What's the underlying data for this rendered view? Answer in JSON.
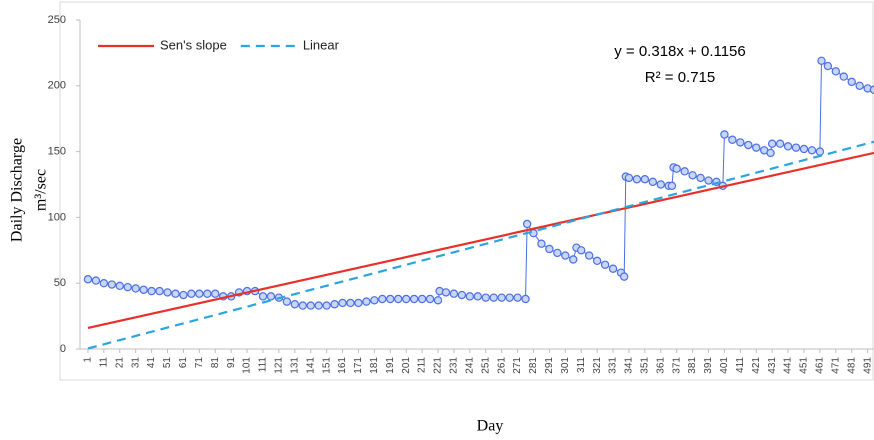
{
  "chart_data": {
    "type": "line",
    "xlabel": "Day",
    "ylabel": [
      "Daily Discharge",
      "m³/sec"
    ],
    "annotations": [
      "y = 0.318x + 0.1156",
      "R² = 0.715"
    ],
    "xlim": [
      -4,
      495
    ],
    "ylim": [
      0,
      250
    ],
    "yticks": [
      0,
      50,
      100,
      150,
      200,
      250
    ],
    "xticks": [
      1,
      11,
      21,
      31,
      41,
      51,
      61,
      71,
      81,
      91,
      101,
      111,
      121,
      131,
      141,
      151,
      161,
      171,
      181,
      191,
      201,
      211,
      221,
      231,
      241,
      251,
      261,
      271,
      281,
      291,
      301,
      311,
      321,
      331,
      341,
      351,
      361,
      371,
      381,
      391,
      401,
      411,
      421,
      431,
      441,
      451,
      461,
      471,
      481,
      491
    ],
    "legend": "top-left",
    "series": [
      {
        "color": "#4a6fe3",
        "marker": "circle",
        "x": [
          1,
          6,
          11,
          16,
          21,
          26,
          31,
          36,
          41,
          46,
          51,
          56,
          61,
          66,
          71,
          76,
          81,
          86,
          91,
          96,
          101,
          106,
          111,
          116,
          121,
          126,
          131,
          136,
          141,
          146,
          151,
          156,
          161,
          166,
          171,
          176,
          181,
          186,
          191,
          196,
          201,
          206,
          211,
          216,
          221,
          222,
          226,
          231,
          236,
          241,
          246,
          251,
          256,
          261,
          266,
          271,
          276,
          277,
          281,
          286,
          291,
          296,
          301,
          306,
          308,
          311,
          316,
          321,
          326,
          331,
          336,
          338,
          339,
          341,
          346,
          351,
          356,
          361,
          366,
          368,
          369,
          371,
          376,
          381,
          386,
          391,
          396,
          400,
          401,
          406,
          411,
          416,
          421,
          426,
          430,
          431,
          436,
          441,
          446,
          451,
          456,
          461,
          462,
          466,
          471,
          476,
          481,
          486,
          491,
          495
        ],
        "values": [
          53,
          52,
          50,
          49,
          48,
          47,
          46,
          45,
          44,
          44,
          43,
          42,
          41,
          42,
          42,
          42,
          42,
          40,
          40,
          43,
          44,
          44,
          40,
          40,
          39,
          36,
          34,
          33,
          33,
          33,
          33,
          34,
          35,
          35,
          35,
          36,
          37,
          38,
          38,
          38,
          38,
          38,
          38,
          38,
          37,
          44,
          43,
          42,
          41,
          40,
          40,
          39,
          39,
          39,
          39,
          39,
          38,
          95,
          88,
          80,
          76,
          73,
          71,
          68,
          77,
          75,
          71,
          67,
          64,
          61,
          58,
          55,
          131,
          130,
          129,
          129,
          127,
          125,
          124,
          124,
          138,
          137,
          135,
          132,
          130,
          128,
          127,
          124,
          163,
          159,
          157,
          155,
          153,
          151,
          149,
          156,
          156,
          154,
          153,
          152,
          151,
          150,
          219,
          215,
          211,
          207,
          203,
          200,
          198,
          197
        ]
      },
      {
        "name": "Sen's slope",
        "color": "#e8302a",
        "x": [
          1,
          495
        ],
        "values": [
          16,
          149
        ]
      },
      {
        "name": "Linear",
        "color": "#2aa5e0",
        "dash": true,
        "x": [
          1,
          495
        ],
        "values": [
          0.4,
          157.5
        ]
      }
    ]
  }
}
